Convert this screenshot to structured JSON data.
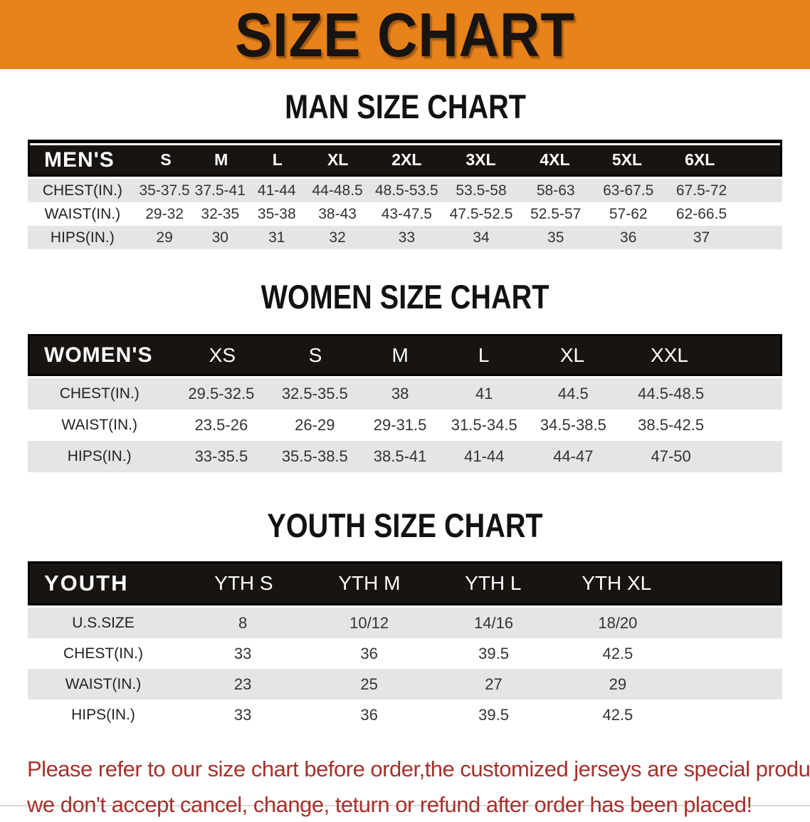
{
  "banner": {
    "title": "SIZE CHART",
    "bg_color": "#e8821b"
  },
  "men": {
    "heading": "MAN SIZE CHART",
    "corner": "MEN'S",
    "cols": [
      "S",
      "M",
      "L",
      "XL",
      "2XL",
      "3XL",
      "4XL",
      "5XL",
      "6XL"
    ],
    "rows": [
      {
        "label": "CHEST(IN.)",
        "values": [
          "35-37.5",
          "37.5-41",
          "41-44",
          "44-48.5",
          "48.5-53.5",
          "53.5-58",
          "58-63",
          "63-67.5",
          "67.5-72"
        ]
      },
      {
        "label": "WAIST(IN.)",
        "values": [
          "29-32",
          "32-35",
          "35-38",
          "38-43",
          "43-47.5",
          "47.5-52.5",
          "52.5-57",
          "57-62",
          "62-66.5"
        ]
      },
      {
        "label": "HIPS(IN.)",
        "values": [
          "29",
          "30",
          "31",
          "32",
          "33",
          "34",
          "35",
          "36",
          "37"
        ]
      }
    ]
  },
  "women": {
    "heading": "WOMEN SIZE CHART",
    "corner": "WOMEN'S",
    "cols": [
      "XS",
      "S",
      "M",
      "L",
      "XL",
      "XXL"
    ],
    "rows": [
      {
        "label": "CHEST(IN.)",
        "values": [
          "29.5-32.5",
          "32.5-35.5",
          "38",
          "41",
          "44.5",
          "44.5-48.5"
        ]
      },
      {
        "label": "WAIST(IN.)",
        "values": [
          "23.5-26",
          "26-29",
          "29-31.5",
          "31.5-34.5",
          "34.5-38.5",
          "38.5-42.5"
        ]
      },
      {
        "label": "HIPS(IN.)",
        "values": [
          "33-35.5",
          "35.5-38.5",
          "38.5-41",
          "41-44",
          "44-47",
          "47-50"
        ]
      }
    ]
  },
  "youth": {
    "heading": "YOUTH SIZE CHART",
    "corner": "YOUTH",
    "cols": [
      "YTH S",
      "YTH M",
      "YTH L",
      "YTH XL"
    ],
    "rows": [
      {
        "label": "U.S.SIZE",
        "values": [
          "8",
          "10/12",
          "14/16",
          "18/20"
        ]
      },
      {
        "label": "CHEST(IN.)",
        "values": [
          "33",
          "36",
          "39.5",
          "42.5"
        ]
      },
      {
        "label": "WAIST(IN.)",
        "values": [
          "23",
          "25",
          "27",
          "29"
        ]
      },
      {
        "label": "HIPS(IN.)",
        "values": [
          "33",
          "36",
          "39.5",
          "42.5"
        ]
      }
    ]
  },
  "disclaimer": {
    "line1": "Please refer to our size chart before order,the customized jerseys are special products,",
    "line2": "we don't accept cancel, change, teturn or refund after order has been placed!",
    "color": "#a6302a"
  }
}
